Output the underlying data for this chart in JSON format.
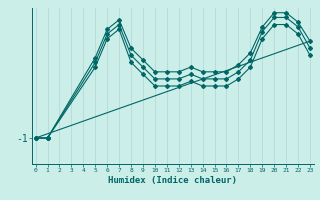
{
  "xlabel": "Humidex (Indice chaleur)",
  "background_color": "#cceee8",
  "grid_color": "#b8d8d8",
  "line_color": "#006666",
  "x_ticks": [
    0,
    1,
    2,
    3,
    4,
    5,
    6,
    7,
    8,
    9,
    10,
    11,
    12,
    13,
    14,
    15,
    16,
    17,
    18,
    19,
    20,
    21,
    22,
    23
  ],
  "xlim": [
    -0.3,
    23.3
  ],
  "ylim": [
    -1.55,
    1.75
  ],
  "ytick_val": -1.0,
  "ytick_label": "-1",
  "series_peak": {
    "x": [
      0,
      1,
      5,
      6,
      7,
      8,
      9,
      10,
      11,
      12,
      13,
      14,
      15,
      16,
      17,
      18,
      19,
      20,
      21,
      22,
      23
    ],
    "y": [
      -1.0,
      -1.0,
      0.5,
      1.1,
      1.3,
      0.6,
      0.35,
      0.1,
      0.1,
      0.1,
      0.2,
      0.1,
      0.1,
      0.1,
      0.25,
      0.5,
      1.1,
      1.4,
      1.4,
      1.2,
      0.75
    ]
  },
  "series_mid": {
    "x": [
      0,
      1,
      5,
      6,
      7,
      8,
      9,
      10,
      11,
      12,
      13,
      14,
      15,
      16,
      17,
      18,
      19,
      20,
      21,
      22,
      23
    ],
    "y": [
      -1.0,
      -1.0,
      0.6,
      1.2,
      1.4,
      0.75,
      0.5,
      0.25,
      0.25,
      0.25,
      0.35,
      0.25,
      0.25,
      0.25,
      0.4,
      0.65,
      1.25,
      1.55,
      1.55,
      1.35,
      0.9
    ]
  },
  "series_high": {
    "x": [
      0,
      1,
      5,
      6,
      7,
      8,
      9,
      10,
      11,
      12,
      13,
      14,
      15,
      16,
      17,
      18,
      19,
      20,
      21,
      22,
      23
    ],
    "y": [
      -1.0,
      -1.0,
      0.7,
      1.3,
      1.5,
      0.9,
      0.65,
      0.4,
      0.4,
      0.4,
      0.5,
      0.4,
      0.4,
      0.4,
      0.55,
      0.8,
      1.35,
      1.65,
      1.65,
      1.45,
      1.05
    ]
  },
  "series_line": {
    "x": [
      0,
      23
    ],
    "y": [
      -1.0,
      1.05
    ]
  }
}
